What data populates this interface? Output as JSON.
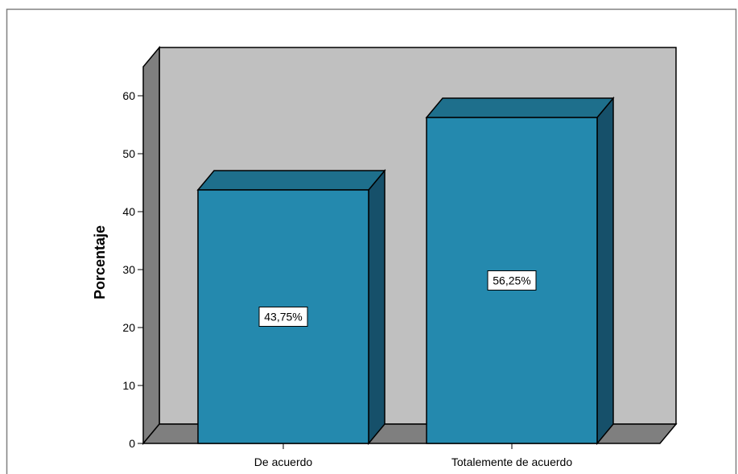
{
  "chart_data": {
    "type": "bar",
    "categories": [
      "De acuerdo",
      "Totalemente de acuerdo"
    ],
    "values": [
      43.75,
      56.25
    ],
    "data_labels": [
      "43,75%",
      "56,25%"
    ],
    "ylabel": "Porcentaje",
    "yticks": [
      "0",
      "10",
      "20",
      "30",
      "40",
      "50",
      "60"
    ],
    "ylim": [
      0,
      65
    ],
    "grid": false,
    "style": "3d",
    "colors": {
      "bar_front": "#2489AE",
      "bar_top": "#1E6F8C",
      "bar_side": "#16506A",
      "back_wall": "#C0C0C0",
      "side_wall": "#7F7F7F",
      "floor": "#7F7F7F"
    }
  }
}
